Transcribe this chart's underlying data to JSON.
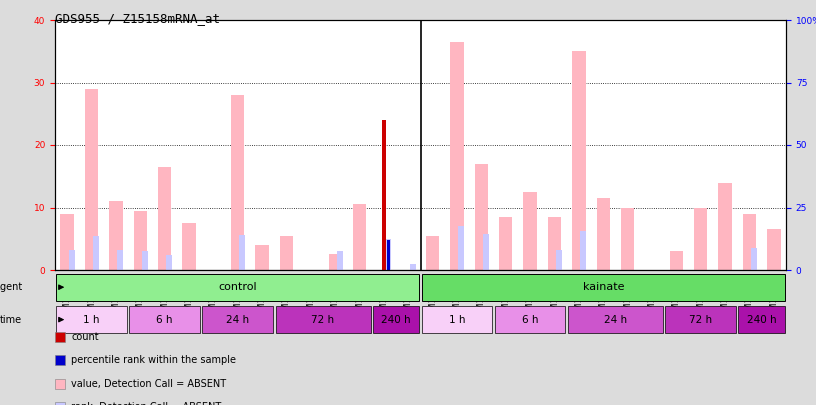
{
  "title": "GDS955 / Z15158mRNA_at",
  "samples": [
    "GSM19311",
    "GSM19313",
    "GSM19314",
    "GSM19328",
    "GSM19330",
    "GSM19332",
    "GSM19322",
    "GSM19324",
    "GSM19326",
    "GSM19334",
    "GSM19336",
    "GSM19338",
    "GSM19316",
    "GSM19318",
    "GSM19320",
    "GSM19340",
    "GSM19342",
    "GSM19343",
    "GSM19350",
    "GSM19351",
    "GSM19352",
    "GSM19347",
    "GSM19348",
    "GSM19349",
    "GSM19353",
    "GSM19354",
    "GSM19355",
    "GSM19344",
    "GSM19345",
    "GSM19346"
  ],
  "value_absent": [
    9.0,
    29.0,
    11.0,
    9.5,
    16.5,
    7.5,
    0.0,
    28.0,
    4.0,
    5.5,
    0.0,
    2.5,
    10.5,
    0.0,
    0.0,
    5.5,
    36.5,
    17.0,
    8.5,
    12.5,
    8.5,
    35.0,
    11.5,
    10.0,
    0.0,
    3.0,
    10.0,
    14.0,
    9.0,
    6.5
  ],
  "rank_absent": [
    8.0,
    13.5,
    8.0,
    7.5,
    6.0,
    0.0,
    0.0,
    14.0,
    0.0,
    0.0,
    0.0,
    7.5,
    0.0,
    12.5,
    2.5,
    0.0,
    17.5,
    14.5,
    0.0,
    0.0,
    8.0,
    15.5,
    0.0,
    0.0,
    0.0,
    0.0,
    0.0,
    0.0,
    9.0,
    0.0
  ],
  "count": [
    0,
    0,
    0,
    0,
    0,
    0,
    0,
    0,
    0,
    0,
    0,
    0,
    0,
    24,
    0,
    0,
    0,
    0,
    0,
    0,
    0,
    0,
    0,
    0,
    0,
    0,
    0,
    0,
    0,
    0
  ],
  "percentile": [
    0,
    0,
    0,
    0,
    0,
    0,
    0,
    0,
    0,
    0,
    0,
    0,
    0,
    12,
    0,
    0,
    0,
    0,
    0,
    0,
    0,
    0,
    0,
    0,
    0,
    0,
    0,
    0,
    0,
    0
  ],
  "ylim_left": [
    0,
    40
  ],
  "ylim_right": [
    0,
    100
  ],
  "yticks_left": [
    0,
    10,
    20,
    30,
    40
  ],
  "yticks_right": [
    0,
    25,
    50,
    75,
    100
  ],
  "yticklabels_right": [
    "0",
    "25",
    "50",
    "75",
    "100%"
  ],
  "color_value_absent": "#FFB6C1",
  "color_rank_absent": "#C8C8FF",
  "color_count": "#CC0000",
  "color_percentile": "#0000CC",
  "bg_color": "#DCDCDC",
  "plot_bg_color": "#FFFFFF",
  "tick_label_bg": "#C8C8C8",
  "agent_control_color": "#90EE90",
  "agent_kainate_color": "#66DD66",
  "time_groups_control": [
    {
      "label": "1 h",
      "start": 0,
      "end": 2,
      "color": "#F8F0F8"
    },
    {
      "label": "6 h",
      "start": 3,
      "end": 5,
      "color": "#E890E8"
    },
    {
      "label": "24 h",
      "start": 6,
      "end": 8,
      "color": "#CC55CC"
    },
    {
      "label": "72 h",
      "start": 9,
      "end": 12,
      "color": "#BB33BB"
    },
    {
      "label": "240 h",
      "start": 13,
      "end": 14,
      "color": "#AA11AA"
    }
  ],
  "time_groups_kainate": [
    {
      "label": "1 h",
      "start": 15,
      "end": 17,
      "color": "#F8F0F8"
    },
    {
      "label": "6 h",
      "start": 18,
      "end": 20,
      "color": "#E890E8"
    },
    {
      "label": "24 h",
      "start": 21,
      "end": 24,
      "color": "#CC55CC"
    },
    {
      "label": "72 h",
      "start": 25,
      "end": 27,
      "color": "#BB33BB"
    },
    {
      "label": "240 h",
      "start": 28,
      "end": 29,
      "color": "#AA11AA"
    }
  ],
  "font_size_title": 9,
  "font_size_ticks": 6.5,
  "font_size_labels": 7.5
}
